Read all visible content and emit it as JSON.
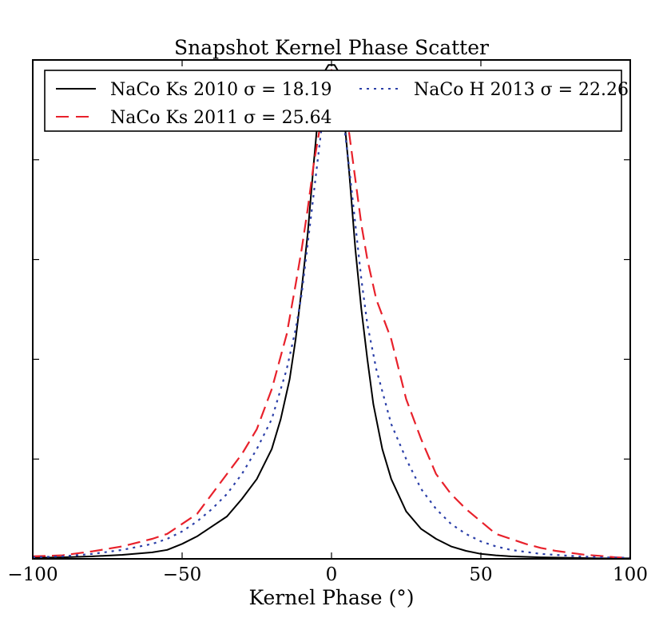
{
  "chart_data": {
    "type": "line",
    "title": "Snapshot Kernel Phase Scatter",
    "xlabel": "Kernel Phase (°)",
    "ylabel": "",
    "xlim": [
      -100,
      100
    ],
    "ylim": [
      0,
      1.0
    ],
    "xticks": [
      -100,
      -50,
      0,
      50,
      100
    ],
    "xtick_labels": [
      "−100",
      "−50",
      "0",
      "50",
      "100"
    ],
    "y_minor_ticks": [
      0.2,
      0.4,
      0.6,
      0.8
    ],
    "grid": false,
    "legend": {
      "placement": "top",
      "columns": 2
    },
    "series": [
      {
        "name": "NaCo Ks 2010",
        "sigma_label": "σ = 18.19",
        "color": "#000000",
        "style": "solid",
        "x": [
          -100,
          -90,
          -80,
          -70,
          -60,
          -55,
          -50,
          -45,
          -40,
          -35,
          -30,
          -25,
          -20,
          -17,
          -14,
          -12,
          -10,
          -8,
          -6,
          -4,
          -2,
          -1,
          0,
          1,
          2,
          4,
          6,
          8,
          10,
          12,
          14,
          17,
          20,
          25,
          30,
          35,
          40,
          45,
          50,
          55,
          60,
          70,
          80,
          90,
          100
        ],
        "y": [
          0.002,
          0.003,
          0.005,
          0.008,
          0.013,
          0.018,
          0.03,
          0.045,
          0.065,
          0.085,
          0.12,
          0.16,
          0.22,
          0.28,
          0.36,
          0.44,
          0.54,
          0.65,
          0.79,
          0.92,
          0.98,
          0.99,
          0.99,
          0.99,
          0.98,
          0.9,
          0.77,
          0.62,
          0.5,
          0.4,
          0.31,
          0.22,
          0.16,
          0.095,
          0.06,
          0.04,
          0.025,
          0.016,
          0.01,
          0.007,
          0.005,
          0.003,
          0.002,
          0.001,
          0.001
        ]
      },
      {
        "name": "NaCo Ks 2011",
        "sigma_label": "σ = 25.64",
        "color": "#e8212b",
        "style": "dashed",
        "x": [
          -100,
          -90,
          -80,
          -70,
          -60,
          -55,
          -50,
          -45,
          -40,
          -35,
          -30,
          -25,
          -20,
          -15,
          -12,
          -10,
          -8,
          -6,
          -4,
          -2,
          0,
          2,
          4,
          6,
          8,
          10,
          12,
          15,
          20,
          25,
          30,
          35,
          40,
          45,
          50,
          55,
          60,
          65,
          70,
          75,
          80,
          85,
          90,
          95,
          100
        ],
        "y": [
          0.005,
          0.007,
          0.015,
          0.025,
          0.04,
          0.05,
          0.07,
          0.09,
          0.13,
          0.17,
          0.21,
          0.26,
          0.34,
          0.45,
          0.55,
          0.62,
          0.7,
          0.79,
          0.86,
          0.93,
          0.98,
          0.95,
          0.93,
          0.85,
          0.76,
          0.67,
          0.6,
          0.52,
          0.44,
          0.32,
          0.24,
          0.17,
          0.13,
          0.1,
          0.075,
          0.05,
          0.04,
          0.03,
          0.022,
          0.016,
          0.012,
          0.008,
          0.006,
          0.003,
          0.002
        ]
      },
      {
        "name": "NaCo H 2013",
        "sigma_label": "σ = 22.26",
        "color": "#2b3fa8",
        "style": "dotted",
        "x": [
          -100,
          -90,
          -80,
          -70,
          -60,
          -55,
          -50,
          -45,
          -40,
          -35,
          -30,
          -25,
          -20,
          -15,
          -12,
          -10,
          -8,
          -6,
          -4,
          -2,
          0,
          2,
          4,
          6,
          8,
          10,
          12,
          15,
          20,
          25,
          30,
          35,
          40,
          45,
          50,
          55,
          60,
          70,
          80,
          90,
          100
        ],
        "y": [
          0.003,
          0.005,
          0.01,
          0.018,
          0.03,
          0.04,
          0.055,
          0.075,
          0.1,
          0.13,
          0.17,
          0.22,
          0.28,
          0.38,
          0.46,
          0.53,
          0.63,
          0.73,
          0.83,
          0.93,
          0.98,
          0.96,
          0.88,
          0.78,
          0.67,
          0.56,
          0.47,
          0.38,
          0.27,
          0.2,
          0.14,
          0.1,
          0.07,
          0.05,
          0.035,
          0.025,
          0.018,
          0.01,
          0.006,
          0.003,
          0.002
        ]
      }
    ]
  }
}
